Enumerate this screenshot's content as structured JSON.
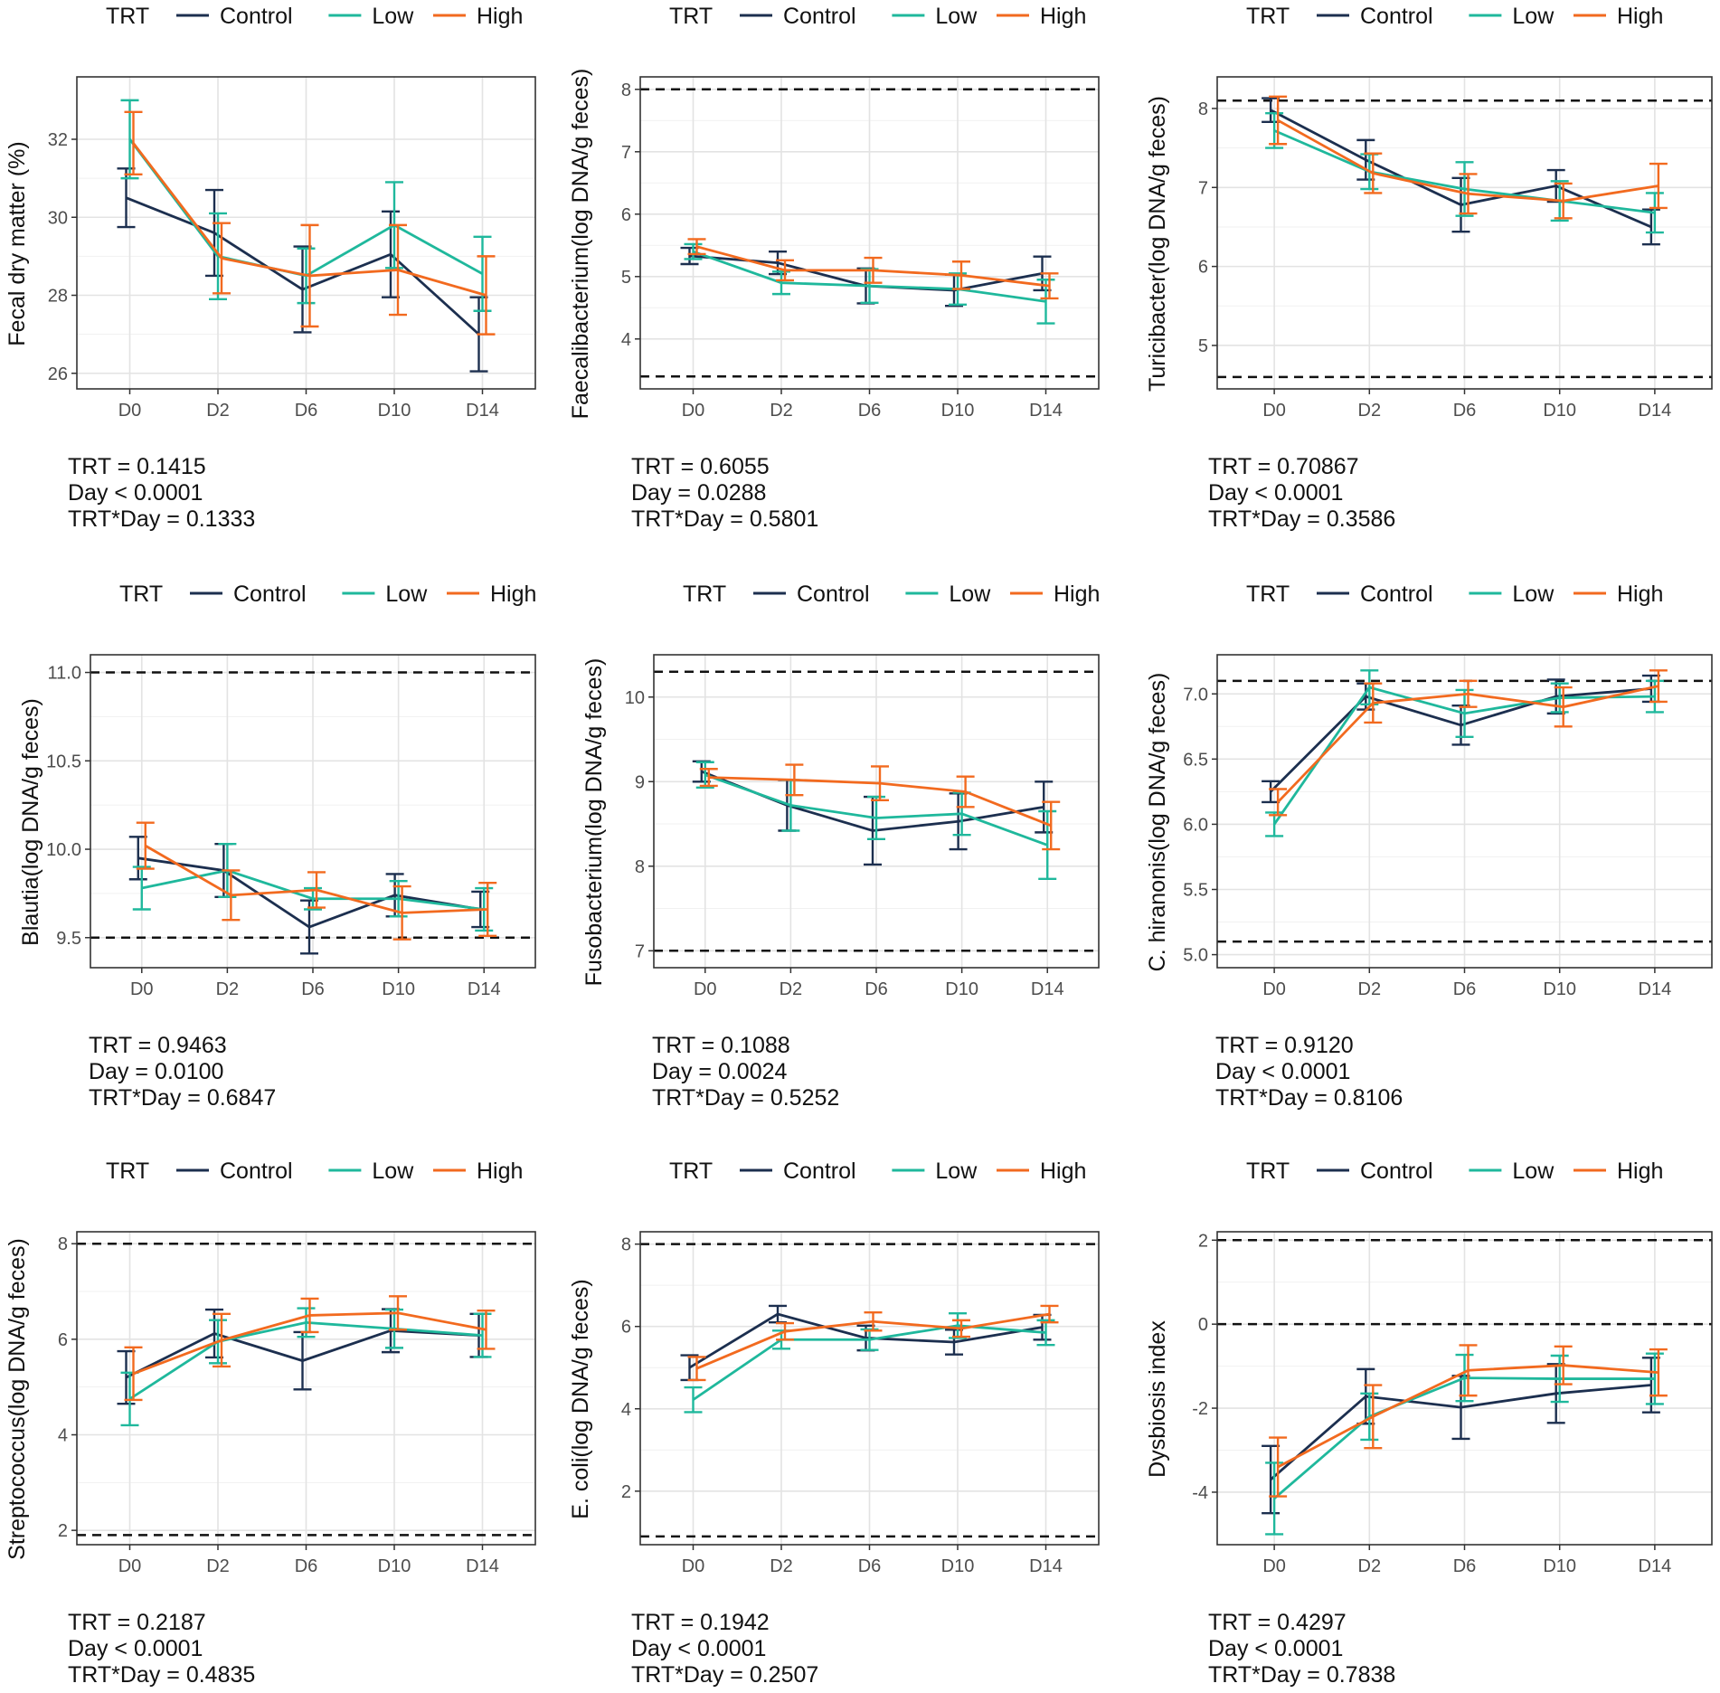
{
  "legend": {
    "title": "TRT",
    "entries": [
      {
        "label": "Control",
        "color": "#1c2f4f"
      },
      {
        "label": "Low",
        "color": "#1fb89c"
      },
      {
        "label": "High",
        "color": "#f26a1f"
      }
    ]
  },
  "style": {
    "grid_major": "#e3e3e3",
    "grid_minor": "#f1f1f1",
    "panel_border": "#333333",
    "reference_line": "#111111"
  },
  "chart_data": [
    {
      "type": "line",
      "ylabel": "Fecal dry matter (%)",
      "categories": [
        "D0",
        "D2",
        "D6",
        "D10",
        "D14"
      ],
      "ylim": [
        25.6,
        33.6
      ],
      "yticks": [
        26,
        28,
        30,
        32
      ],
      "ref_lines": [],
      "series": [
        {
          "name": "Control",
          "values": [
            30.5,
            29.6,
            28.15,
            29.05,
            27.0
          ],
          "err": [
            0.75,
            1.1,
            1.1,
            1.1,
            0.95
          ]
        },
        {
          "name": "Low",
          "values": [
            32.0,
            29.0,
            28.5,
            29.8,
            28.55
          ],
          "err": [
            1.0,
            1.1,
            0.7,
            1.1,
            0.95
          ]
        },
        {
          "name": "High",
          "values": [
            31.9,
            28.95,
            28.5,
            28.65,
            28.0
          ],
          "err": [
            0.8,
            0.9,
            1.3,
            1.15,
            1.0
          ]
        }
      ],
      "stats": [
        "TRT = 0.1415",
        "Day < 0.0001",
        "TRT*Day = 0.1333"
      ]
    },
    {
      "type": "line",
      "ylabel": "Faecalibacterium(log DNA/g feces)",
      "categories": [
        "D0",
        "D2",
        "D6",
        "D10",
        "D14"
      ],
      "ylim": [
        3.2,
        8.2
      ],
      "yticks": [
        4,
        5,
        6,
        7,
        8
      ],
      "ref_lines": [
        8.0,
        3.4
      ],
      "series": [
        {
          "name": "Control",
          "values": [
            5.33,
            5.22,
            4.85,
            4.78,
            5.05
          ],
          "err": [
            0.13,
            0.18,
            0.28,
            0.25,
            0.27
          ]
        },
        {
          "name": "Low",
          "values": [
            5.4,
            4.9,
            4.85,
            4.8,
            4.6
          ],
          "err": [
            0.12,
            0.18,
            0.27,
            0.25,
            0.35
          ]
        },
        {
          "name": "High",
          "values": [
            5.48,
            5.1,
            5.1,
            5.02,
            4.85
          ],
          "err": [
            0.12,
            0.16,
            0.2,
            0.22,
            0.2
          ]
        }
      ],
      "stats": [
        "TRT = 0.6055",
        "Day = 0.0288",
        "TRT*Day = 0.5801"
      ]
    },
    {
      "type": "line",
      "ylabel": "Turicibacter(log DNA/g feces)",
      "categories": [
        "D0",
        "D2",
        "D6",
        "D10",
        "D14"
      ],
      "ylim": [
        4.45,
        8.4
      ],
      "yticks": [
        5,
        6,
        7,
        8
      ],
      "ref_lines": [
        8.1,
        4.6
      ],
      "series": [
        {
          "name": "Control",
          "values": [
            7.98,
            7.35,
            6.78,
            7.02,
            6.5
          ],
          "err": [
            0.15,
            0.25,
            0.34,
            0.2,
            0.22
          ]
        },
        {
          "name": "Low",
          "values": [
            7.72,
            7.2,
            6.98,
            6.83,
            6.68
          ],
          "err": [
            0.22,
            0.22,
            0.34,
            0.25,
            0.25
          ]
        },
        {
          "name": "High",
          "values": [
            7.85,
            7.18,
            6.92,
            6.83,
            7.02
          ],
          "err": [
            0.3,
            0.25,
            0.25,
            0.22,
            0.28
          ]
        }
      ],
      "stats": [
        "TRT = 0.70867",
        "Day < 0.0001",
        "TRT*Day = 0.3586"
      ]
    },
    {
      "type": "line",
      "ylabel": "Blautia(log DNA/g feces)",
      "categories": [
        "D0",
        "D2",
        "D6",
        "D10",
        "D14"
      ],
      "ylim": [
        9.33,
        11.1
      ],
      "yticks": [
        9.5,
        10.0,
        10.5,
        11.0
      ],
      "ref_lines": [
        11.0,
        9.5
      ],
      "series": [
        {
          "name": "Control",
          "values": [
            9.95,
            9.88,
            9.56,
            9.74,
            9.66
          ],
          "err": [
            0.12,
            0.15,
            0.15,
            0.12,
            0.1
          ]
        },
        {
          "name": "Low",
          "values": [
            9.78,
            9.88,
            9.72,
            9.72,
            9.66
          ],
          "err": [
            0.12,
            0.15,
            0.06,
            0.1,
            0.12
          ]
        },
        {
          "name": "High",
          "values": [
            10.02,
            9.74,
            9.77,
            9.64,
            9.66
          ],
          "err": [
            0.13,
            0.14,
            0.1,
            0.15,
            0.15
          ]
        }
      ],
      "stats": [
        "TRT = 0.9463",
        "Day = 0.0100",
        "TRT*Day = 0.6847"
      ]
    },
    {
      "type": "line",
      "ylabel": "Fusobacterium(log DNA/g feces)",
      "categories": [
        "D0",
        "D2",
        "D6",
        "D10",
        "D14"
      ],
      "ylim": [
        6.8,
        10.5
      ],
      "yticks": [
        7,
        8,
        9,
        10
      ],
      "ref_lines": [
        10.3,
        7.0
      ],
      "series": [
        {
          "name": "Control",
          "values": [
            9.12,
            8.72,
            8.42,
            8.53,
            8.7
          ],
          "err": [
            0.12,
            0.3,
            0.4,
            0.33,
            0.3
          ]
        },
        {
          "name": "Low",
          "values": [
            9.08,
            8.72,
            8.57,
            8.62,
            8.25
          ],
          "err": [
            0.15,
            0.3,
            0.25,
            0.25,
            0.4
          ]
        },
        {
          "name": "High",
          "values": [
            9.05,
            9.02,
            8.98,
            8.88,
            8.48
          ],
          "err": [
            0.1,
            0.18,
            0.2,
            0.18,
            0.28
          ]
        }
      ],
      "stats": [
        "TRT = 0.1088",
        "Day = 0.0024",
        "TRT*Day = 0.5252"
      ]
    },
    {
      "type": "line",
      "ylabel": "C. hiranonis(log DNA/g feces)",
      "categories": [
        "D0",
        "D2",
        "D6",
        "D10",
        "D14"
      ],
      "ylim": [
        4.9,
        7.3
      ],
      "yticks": [
        5.0,
        5.5,
        6.0,
        6.5,
        7.0
      ],
      "ref_lines": [
        7.1,
        5.1
      ],
      "series": [
        {
          "name": "Control",
          "values": [
            6.25,
            6.98,
            6.76,
            6.98,
            7.04
          ],
          "err": [
            0.08,
            0.1,
            0.15,
            0.13,
            0.1
          ]
        },
        {
          "name": "Low",
          "values": [
            6.0,
            7.05,
            6.85,
            6.97,
            6.98
          ],
          "err": [
            0.09,
            0.13,
            0.18,
            0.11,
            0.12
          ]
        },
        {
          "name": "High",
          "values": [
            6.17,
            6.93,
            7.0,
            6.9,
            7.06
          ],
          "err": [
            0.1,
            0.15,
            0.1,
            0.15,
            0.12
          ]
        }
      ],
      "stats": [
        "TRT = 0.9120",
        "Day < 0.0001",
        "TRT*Day = 0.8106"
      ]
    },
    {
      "type": "line",
      "ylabel": "Streptococcus(log DNA/g feces)",
      "categories": [
        "D0",
        "D2",
        "D6",
        "D10",
        "D14"
      ],
      "ylim": [
        1.7,
        8.25
      ],
      "yticks": [
        2,
        4,
        6,
        8
      ],
      "ref_lines": [
        8.0,
        1.9
      ],
      "series": [
        {
          "name": "Control",
          "values": [
            5.2,
            6.12,
            5.55,
            6.18,
            6.08
          ],
          "err": [
            0.55,
            0.5,
            0.6,
            0.45,
            0.45
          ]
        },
        {
          "name": "Low",
          "values": [
            4.75,
            5.95,
            6.35,
            6.22,
            6.08
          ],
          "err": [
            0.55,
            0.45,
            0.3,
            0.4,
            0.45
          ]
        },
        {
          "name": "High",
          "values": [
            5.28,
            5.98,
            6.5,
            6.55,
            6.2
          ],
          "err": [
            0.55,
            0.55,
            0.35,
            0.35,
            0.4
          ]
        }
      ],
      "stats": [
        "TRT = 0.2187",
        "Day < 0.0001",
        "TRT*Day = 0.4835"
      ]
    },
    {
      "type": "line",
      "ylabel": "E. coli(log DNA/g feces)",
      "categories": [
        "D0",
        "D2",
        "D6",
        "D10",
        "D14"
      ],
      "ylim": [
        0.7,
        8.3
      ],
      "yticks": [
        2,
        4,
        6,
        8
      ],
      "ref_lines": [
        8.0,
        0.9
      ],
      "series": [
        {
          "name": "Control",
          "values": [
            5.0,
            6.3,
            5.72,
            5.62,
            5.98
          ],
          "err": [
            0.3,
            0.2,
            0.3,
            0.3,
            0.3
          ]
        },
        {
          "name": "Low",
          "values": [
            4.22,
            5.68,
            5.68,
            6.02,
            5.85
          ],
          "err": [
            0.3,
            0.22,
            0.25,
            0.3,
            0.3
          ]
        },
        {
          "name": "High",
          "values": [
            4.98,
            5.88,
            6.12,
            5.95,
            6.3
          ],
          "err": [
            0.28,
            0.2,
            0.22,
            0.2,
            0.2
          ]
        }
      ],
      "stats": [
        "TRT = 0.1942",
        "Day < 0.0001",
        "TRT*Day = 0.2507"
      ]
    },
    {
      "type": "line",
      "ylabel": "Dysbiosis index",
      "categories": [
        "D0",
        "D2",
        "D6",
        "D10",
        "D14"
      ],
      "ylim": [
        -5.25,
        2.2
      ],
      "yticks": [
        -4,
        -2,
        0,
        2
      ],
      "ref_lines": [
        2,
        0
      ],
      "series": [
        {
          "name": "Control",
          "values": [
            -3.7,
            -1.72,
            -1.98,
            -1.65,
            -1.45
          ],
          "err": [
            0.8,
            0.65,
            0.75,
            0.7,
            0.65
          ]
        },
        {
          "name": "Low",
          "values": [
            -4.15,
            -2.2,
            -1.28,
            -1.3,
            -1.3
          ],
          "err": [
            0.85,
            0.55,
            0.55,
            0.55,
            0.6
          ]
        },
        {
          "name": "High",
          "values": [
            -3.4,
            -2.2,
            -1.1,
            -0.98,
            -1.15
          ],
          "err": [
            0.7,
            0.75,
            0.6,
            0.45,
            0.55
          ]
        }
      ],
      "stats": [
        "TRT = 0.4297",
        "Day < 0.0001",
        "TRT*Day = 0.7838"
      ]
    }
  ]
}
